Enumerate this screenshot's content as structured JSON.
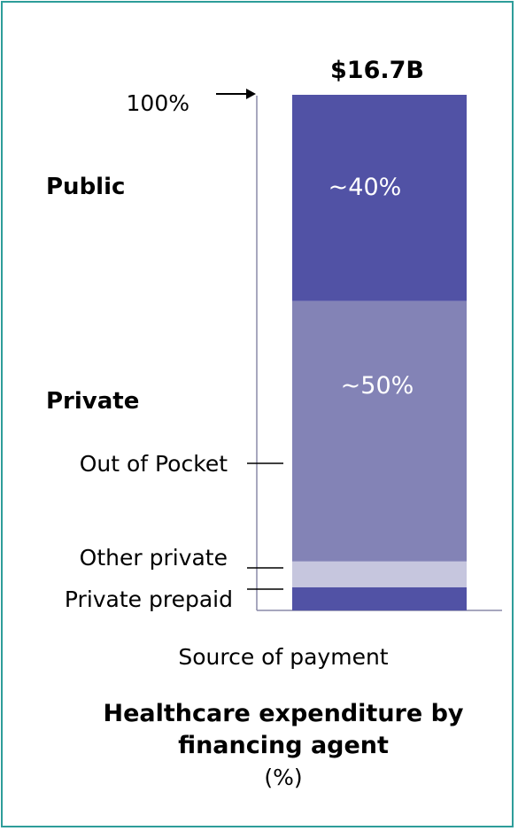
{
  "chart_data": {
    "type": "bar",
    "stacked": true,
    "total_label": "$16.7B",
    "axis_top_label": "100%",
    "xlabel": "Source of payment",
    "title_lines": [
      "Healthcare expenditure by",
      "financing agent"
    ],
    "unit": "(%)",
    "ylim": [
      0,
      100
    ],
    "segments": [
      {
        "key": "private_prepaid",
        "value": 4.5,
        "color": "#5152a5",
        "label": ""
      },
      {
        "key": "other_private",
        "value": 5,
        "color": "#c6c6de",
        "label": ""
      },
      {
        "key": "out_of_pocket",
        "value": 50.5,
        "color": "#8383b6",
        "label": "~50%"
      },
      {
        "key": "public",
        "value": 40,
        "color": "#5152a5",
        "label": "~40%"
      }
    ],
    "side_labels": {
      "public": "Public",
      "private": "Private",
      "out_of_pocket": "Out of Pocket",
      "other_private": "Other private",
      "private_prepaid": "Private prepaid"
    }
  }
}
